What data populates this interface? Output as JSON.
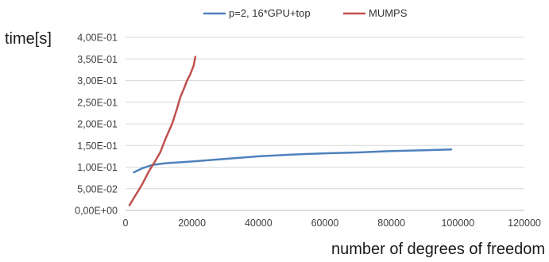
{
  "chart_data": {
    "type": "line",
    "title": "",
    "ylabel": "time[s]",
    "xlabel": "number of degrees of freedom",
    "xlim": [
      0,
      120000
    ],
    "ylim": [
      0,
      0.4
    ],
    "grid": true,
    "legend_position": "top",
    "x_ticks": [
      "0",
      "20000",
      "40000",
      "60000",
      "80000",
      "100000",
      "120000"
    ],
    "y_ticks": [
      "0,00E+00",
      "5,00E-02",
      "1,00E-01",
      "1,50E-01",
      "2,00E-01",
      "2,50E-01",
      "3,00E-01",
      "3,50E-01",
      "4,00E-01"
    ],
    "series": [
      {
        "name": "p=2, 16*GPU+top",
        "color": "#4f81bd",
        "x": [
          2500,
          5000,
          8000,
          12000,
          16000,
          20000,
          25000,
          30000,
          40000,
          50000,
          60000,
          70000,
          80000,
          90000,
          98000
        ],
        "y": [
          0.088,
          0.097,
          0.105,
          0.109,
          0.111,
          0.113,
          0.116,
          0.119,
          0.125,
          0.129,
          0.132,
          0.134,
          0.137,
          0.139,
          0.141
        ]
      },
      {
        "name": "MUMPS",
        "color": "#c0504d",
        "x": [
          1200,
          3000,
          5000,
          7000,
          9000,
          10500,
          12000,
          14000,
          15500,
          16500,
          17500,
          18500,
          19500,
          20500,
          21000
        ],
        "y": [
          0.012,
          0.035,
          0.06,
          0.09,
          0.115,
          0.135,
          0.165,
          0.2,
          0.235,
          0.262,
          0.28,
          0.3,
          0.315,
          0.335,
          0.355
        ]
      }
    ]
  }
}
